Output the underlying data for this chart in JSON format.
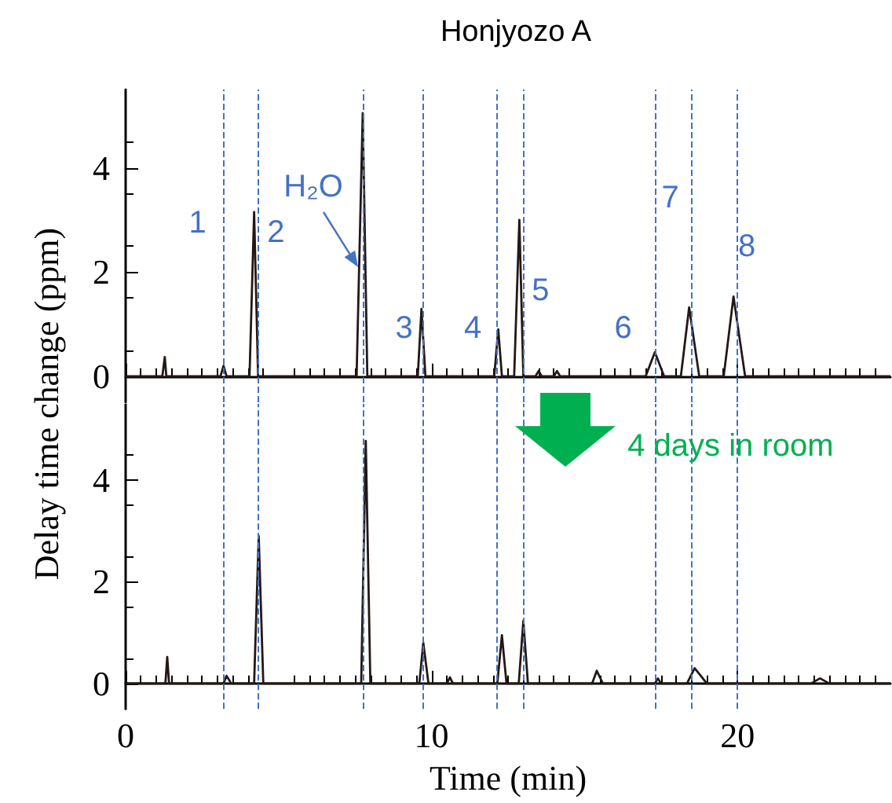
{
  "chart_data": [
    {
      "type": "line",
      "title": "Honjyozo A",
      "ylabel": "Delay time change (ppm)",
      "xlim": [
        0,
        25
      ],
      "xticks": [
        0,
        10,
        20
      ],
      "ylim": [
        -0.5,
        5.5
      ],
      "yticks": [
        0,
        2,
        4
      ],
      "tick_labels": "y",
      "grid": false,
      "marker": "none",
      "line_style": "solid",
      "series": [
        {
          "color": "#231815",
          "x": [
            0,
            1.2,
            1.28,
            1.33,
            3.1,
            3.2,
            3.3,
            4.05,
            4.2,
            4.33,
            7.55,
            7.75,
            7.9,
            9.55,
            9.67,
            9.8,
            12.05,
            12.18,
            12.3,
            12.7,
            12.87,
            13.0,
            13.4,
            13.5,
            13.6,
            14.0,
            14.1,
            14.2,
            17.0,
            17.3,
            17.6,
            18.15,
            18.42,
            18.75,
            19.55,
            19.87,
            20.25,
            25
          ],
          "values": [
            0,
            0,
            0.37,
            0,
            0,
            0.2,
            0,
            0,
            3.15,
            0,
            0,
            5.05,
            0,
            0,
            1.29,
            0,
            0,
            0.9,
            0,
            0,
            3.0,
            0,
            0,
            0.1,
            0,
            0,
            0.1,
            0,
            0,
            0.46,
            0,
            0,
            1.32,
            0,
            0,
            1.53,
            0,
            0
          ]
        }
      ],
      "ref_lines": [
        {
          "axis": "x",
          "value": 3.17,
          "color": "#4472c4",
          "line_style": "dashed"
        },
        {
          "axis": "x",
          "value": 4.35,
          "color": "#4472c4",
          "line_style": "dashed"
        },
        {
          "axis": "x",
          "value": 7.78,
          "color": "#4472c4",
          "line_style": "dashed"
        },
        {
          "axis": "x",
          "value": 9.72,
          "color": "#4472c4",
          "line_style": "dashed"
        },
        {
          "axis": "x",
          "value": 12.12,
          "color": "#4472c4",
          "line_style": "dashed"
        },
        {
          "axis": "x",
          "value": 13.0,
          "color": "#4472c4",
          "line_style": "dashed"
        },
        {
          "axis": "x",
          "value": 17.29,
          "color": "#4472c4",
          "line_style": "dashed"
        },
        {
          "axis": "x",
          "value": 18.47,
          "color": "#4472c4",
          "line_style": "dashed"
        },
        {
          "axis": "x",
          "value": 20.0,
          "color": "#4472c4",
          "line_style": "dashed"
        }
      ],
      "annotations": [
        "1",
        "2",
        "H₂O",
        "3",
        "4",
        "5",
        "6",
        "7",
        "8"
      ]
    },
    {
      "type": "line",
      "xlabel": "Time (min)",
      "xlim": [
        0,
        25
      ],
      "xticks": [
        0,
        10,
        20
      ],
      "ylim": [
        -0.5,
        5.5
      ],
      "yticks": [
        0,
        2,
        4
      ],
      "grid": false,
      "marker": "none",
      "line_style": "solid",
      "series": [
        {
          "color": "#231815",
          "x": [
            0,
            1.3,
            1.36,
            1.42,
            3.2,
            3.3,
            3.45,
            4.2,
            4.35,
            4.5,
            7.7,
            7.85,
            8.0,
            9.6,
            9.73,
            9.9,
            10.5,
            10.6,
            10.7,
            12.15,
            12.3,
            12.45,
            12.85,
            13.0,
            13.15,
            15.25,
            15.4,
            15.6,
            17.3,
            17.4,
            17.5,
            18.35,
            18.6,
            19.0,
            22.4,
            22.7,
            23.0,
            25
          ],
          "values": [
            0,
            0,
            0.52,
            0,
            0,
            0.15,
            0,
            0,
            2.9,
            0,
            0,
            4.77,
            0,
            0,
            0.8,
            0,
            0,
            0.12,
            0,
            0,
            0.95,
            0,
            0,
            1.23,
            0,
            0,
            0.25,
            0,
            0,
            0.1,
            0,
            0,
            0.3,
            0,
            0,
            0.1,
            0,
            0
          ]
        }
      ],
      "ref_lines": [
        {
          "axis": "x",
          "value": 3.17,
          "color": "#4472c4",
          "line_style": "dashed"
        },
        {
          "axis": "x",
          "value": 4.35,
          "color": "#4472c4",
          "line_style": "dashed"
        },
        {
          "axis": "x",
          "value": 7.78,
          "color": "#4472c4",
          "line_style": "dashed"
        },
        {
          "axis": "x",
          "value": 9.72,
          "color": "#4472c4",
          "line_style": "dashed"
        },
        {
          "axis": "x",
          "value": 12.12,
          "color": "#4472c4",
          "line_style": "dashed"
        },
        {
          "axis": "x",
          "value": 13.0,
          "color": "#4472c4",
          "line_style": "dashed"
        },
        {
          "axis": "x",
          "value": 17.29,
          "color": "#4472c4",
          "line_style": "dashed"
        },
        {
          "axis": "x",
          "value": 18.47,
          "color": "#4472c4",
          "line_style": "dashed"
        },
        {
          "axis": "x",
          "value": 20.0,
          "color": "#4472c4",
          "line_style": "dashed"
        }
      ],
      "annotations": [
        "4 days in room"
      ]
    }
  ]
}
